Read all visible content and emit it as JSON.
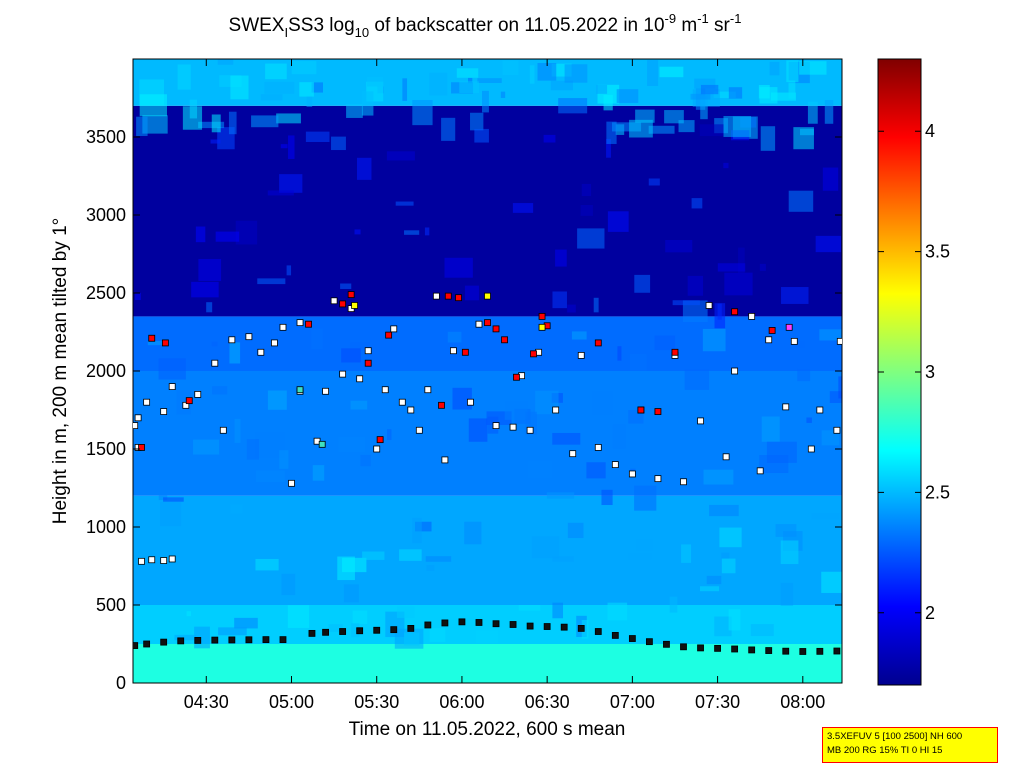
{
  "chart_data": {
    "type": "heatmap",
    "title": {
      "prefix": "SWEX",
      "subscript": "I",
      "middle": "SS3 log",
      "log_base": "10",
      "suffix": " of backscatter on 11.05.2022 in 10",
      "unit_exp1": "-9",
      "unit_m": " m",
      "unit_exp2": "-1",
      "unit_sr": " sr",
      "unit_exp3": "-1"
    },
    "xlabel": "Time on 11.05.2022, 600 s mean",
    "ylabel": "Height in m, 200 m mean tilted by 1°",
    "x_ticks": [
      "04:30",
      "05:00",
      "05:30",
      "06:00",
      "06:30",
      "07:00",
      "07:30",
      "08:00"
    ],
    "x_tick_hours": [
      4.5,
      5.0,
      5.5,
      6.0,
      6.5,
      7.0,
      7.5,
      8.0
    ],
    "xlim_hours": [
      4.07,
      8.23
    ],
    "y_ticks": [
      0,
      500,
      1000,
      1500,
      2000,
      2500,
      3000,
      3500
    ],
    "ylim": [
      0,
      4000
    ],
    "colorbar": {
      "ticks": [
        2,
        2.5,
        3,
        3.5,
        4
      ],
      "tick_labels": [
        "2",
        "2.5",
        "3",
        "3.5",
        "4"
      ],
      "range": [
        1.7,
        4.3
      ],
      "colormap": "jet"
    },
    "field_levels": [
      {
        "height_range": [
          0,
          250
        ],
        "value": 2.75
      },
      {
        "height_range": [
          250,
          500
        ],
        "value": 2.55
      },
      {
        "height_range": [
          500,
          1200
        ],
        "value": 2.45
      },
      {
        "height_range": [
          1200,
          2000
        ],
        "value": 2.35
      },
      {
        "height_range": [
          2000,
          2350
        ],
        "value": 2.3
      },
      {
        "height_range": [
          2350,
          3700
        ],
        "value": 1.78
      },
      {
        "height_range": [
          3700,
          4000
        ],
        "value": 2.5
      }
    ],
    "series": [
      {
        "marker": "square",
        "points": [
          {
            "x": 4.08,
            "y": 240
          },
          {
            "x": 4.15,
            "y": 250
          },
          {
            "x": 4.25,
            "y": 262
          },
          {
            "x": 4.35,
            "y": 270
          },
          {
            "x": 4.45,
            "y": 273
          },
          {
            "x": 4.55,
            "y": 275
          },
          {
            "x": 4.65,
            "y": 276
          },
          {
            "x": 4.75,
            "y": 277
          },
          {
            "x": 4.85,
            "y": 278
          },
          {
            "x": 4.95,
            "y": 278
          },
          {
            "x": 5.12,
            "y": 318
          },
          {
            "x": 5.2,
            "y": 325
          },
          {
            "x": 5.3,
            "y": 330
          },
          {
            "x": 5.4,
            "y": 335
          },
          {
            "x": 5.5,
            "y": 338
          },
          {
            "x": 5.6,
            "y": 342
          },
          {
            "x": 5.7,
            "y": 350
          },
          {
            "x": 5.8,
            "y": 372
          },
          {
            "x": 5.9,
            "y": 385
          },
          {
            "x": 6.0,
            "y": 392
          },
          {
            "x": 6.1,
            "y": 388
          },
          {
            "x": 6.2,
            "y": 380
          },
          {
            "x": 6.3,
            "y": 375
          },
          {
            "x": 6.4,
            "y": 365
          },
          {
            "x": 6.5,
            "y": 362
          },
          {
            "x": 6.6,
            "y": 358
          },
          {
            "x": 6.7,
            "y": 350
          },
          {
            "x": 6.8,
            "y": 330
          },
          {
            "x": 6.9,
            "y": 305
          },
          {
            "x": 7.0,
            "y": 285
          },
          {
            "x": 7.1,
            "y": 265
          },
          {
            "x": 7.2,
            "y": 248
          },
          {
            "x": 7.3,
            "y": 232
          },
          {
            "x": 7.4,
            "y": 225
          },
          {
            "x": 7.5,
            "y": 222
          },
          {
            "x": 7.6,
            "y": 218
          },
          {
            "x": 7.7,
            "y": 212
          },
          {
            "x": 7.8,
            "y": 208
          },
          {
            "x": 7.9,
            "y": 204
          },
          {
            "x": 8.0,
            "y": 202
          },
          {
            "x": 8.1,
            "y": 203
          },
          {
            "x": 8.2,
            "y": 205
          },
          {
            "x": 4.12,
            "y": 780
          },
          {
            "x": 4.18,
            "y": 790
          },
          {
            "x": 4.25,
            "y": 785
          },
          {
            "x": 4.3,
            "y": 795
          },
          {
            "x": 4.1,
            "y": 1700
          },
          {
            "x": 4.08,
            "y": 1650
          },
          {
            "x": 4.1,
            "y": 1510
          },
          {
            "x": 4.15,
            "y": 1800
          },
          {
            "x": 4.25,
            "y": 1740
          },
          {
            "x": 4.3,
            "y": 1900
          },
          {
            "x": 4.38,
            "y": 1780
          },
          {
            "x": 4.45,
            "y": 1850
          },
          {
            "x": 4.55,
            "y": 2050
          },
          {
            "x": 4.6,
            "y": 1620
          },
          {
            "x": 4.65,
            "y": 2200
          },
          {
            "x": 4.75,
            "y": 2220
          },
          {
            "x": 4.82,
            "y": 2120
          },
          {
            "x": 4.9,
            "y": 2180
          },
          {
            "x": 4.95,
            "y": 2280
          },
          {
            "x": 5.05,
            "y": 1870
          },
          {
            "x": 5.0,
            "y": 1280
          },
          {
            "x": 5.05,
            "y": 2310
          },
          {
            "x": 5.15,
            "y": 1550
          },
          {
            "x": 5.2,
            "y": 1870
          },
          {
            "x": 5.25,
            "y": 2450
          },
          {
            "x": 5.3,
            "y": 1980
          },
          {
            "x": 5.35,
            "y": 2400
          },
          {
            "x": 5.4,
            "y": 1950
          },
          {
            "x": 5.45,
            "y": 2130
          },
          {
            "x": 5.5,
            "y": 1500
          },
          {
            "x": 5.55,
            "y": 1880
          },
          {
            "x": 5.6,
            "y": 2270
          },
          {
            "x": 5.65,
            "y": 1800
          },
          {
            "x": 5.7,
            "y": 1750
          },
          {
            "x": 5.75,
            "y": 1620
          },
          {
            "x": 5.8,
            "y": 1880
          },
          {
            "x": 5.85,
            "y": 2480
          },
          {
            "x": 5.9,
            "y": 1430
          },
          {
            "x": 5.95,
            "y": 2130
          },
          {
            "x": 6.05,
            "y": 1800
          },
          {
            "x": 6.1,
            "y": 2300
          },
          {
            "x": 6.2,
            "y": 1650
          },
          {
            "x": 6.3,
            "y": 1640
          },
          {
            "x": 6.35,
            "y": 1970
          },
          {
            "x": 6.4,
            "y": 1620
          },
          {
            "x": 6.45,
            "y": 2120
          },
          {
            "x": 6.55,
            "y": 1750
          },
          {
            "x": 6.65,
            "y": 1470
          },
          {
            "x": 6.7,
            "y": 2100
          },
          {
            "x": 6.8,
            "y": 1510
          },
          {
            "x": 6.9,
            "y": 1400
          },
          {
            "x": 7.0,
            "y": 1340
          },
          {
            "x": 7.05,
            "y": 1750
          },
          {
            "x": 7.15,
            "y": 1310
          },
          {
            "x": 7.25,
            "y": 2100
          },
          {
            "x": 7.3,
            "y": 1290
          },
          {
            "x": 7.4,
            "y": 1680
          },
          {
            "x": 7.45,
            "y": 2420
          },
          {
            "x": 7.55,
            "y": 1450
          },
          {
            "x": 7.6,
            "y": 2000
          },
          {
            "x": 7.7,
            "y": 2350
          },
          {
            "x": 7.75,
            "y": 1360
          },
          {
            "x": 7.8,
            "y": 2200
          },
          {
            "x": 7.9,
            "y": 1770
          },
          {
            "x": 7.95,
            "y": 2190
          },
          {
            "x": 8.05,
            "y": 1500
          },
          {
            "x": 8.1,
            "y": 1750
          },
          {
            "x": 8.2,
            "y": 1620
          },
          {
            "x": 8.22,
            "y": 2190
          }
        ]
      },
      {
        "marker": "square",
        "points": [
          {
            "x": 4.18,
            "y": 2210
          },
          {
            "x": 4.26,
            "y": 2180
          },
          {
            "x": 4.12,
            "y": 1510
          },
          {
            "x": 4.4,
            "y": 1810
          },
          {
            "x": 5.1,
            "y": 2300
          },
          {
            "x": 5.3,
            "y": 2430
          },
          {
            "x": 5.35,
            "y": 2490
          },
          {
            "x": 5.45,
            "y": 2050
          },
          {
            "x": 5.52,
            "y": 1560
          },
          {
            "x": 5.57,
            "y": 2230
          },
          {
            "x": 5.88,
            "y": 1780
          },
          {
            "x": 5.92,
            "y": 2480
          },
          {
            "x": 5.98,
            "y": 2470
          },
          {
            "x": 6.02,
            "y": 2120
          },
          {
            "x": 6.15,
            "y": 2310
          },
          {
            "x": 6.2,
            "y": 2270
          },
          {
            "x": 6.25,
            "y": 2200
          },
          {
            "x": 6.32,
            "y": 1960
          },
          {
            "x": 6.42,
            "y": 2110
          },
          {
            "x": 6.47,
            "y": 2350
          },
          {
            "x": 6.5,
            "y": 2290
          },
          {
            "x": 6.8,
            "y": 2180
          },
          {
            "x": 7.05,
            "y": 1750
          },
          {
            "x": 7.15,
            "y": 1740
          },
          {
            "x": 7.25,
            "y": 2120
          },
          {
            "x": 7.6,
            "y": 2380
          },
          {
            "x": 7.82,
            "y": 2260
          }
        ]
      },
      {
        "marker": "square",
        "points": [
          {
            "x": 6.15,
            "y": 2480
          },
          {
            "x": 6.47,
            "y": 2280
          },
          {
            "x": 5.37,
            "y": 2420
          }
        ]
      },
      {
        "marker": "square",
        "points": [
          {
            "x": 5.05,
            "y": 1880
          },
          {
            "x": 5.18,
            "y": 1530
          }
        ]
      },
      {
        "marker": "square",
        "points": [
          {
            "x": 7.92,
            "y": 2280
          }
        ]
      }
    ]
  },
  "info_box": {
    "line1": "3.5XEFUV 5 [100 2500] NH 600",
    "line2": "MB 200 RG 15% TI 0 HI 15"
  },
  "colors": {
    "marker_white": "#ffffff",
    "marker_red": "#ff0000",
    "marker_yellow": "#ffff00",
    "marker_cyan": "#40e0c0",
    "marker_magenta": "#ff40ff",
    "marker_edge": "#000000",
    "box_fill": "#ffff00",
    "box_border": "#ff0000"
  }
}
